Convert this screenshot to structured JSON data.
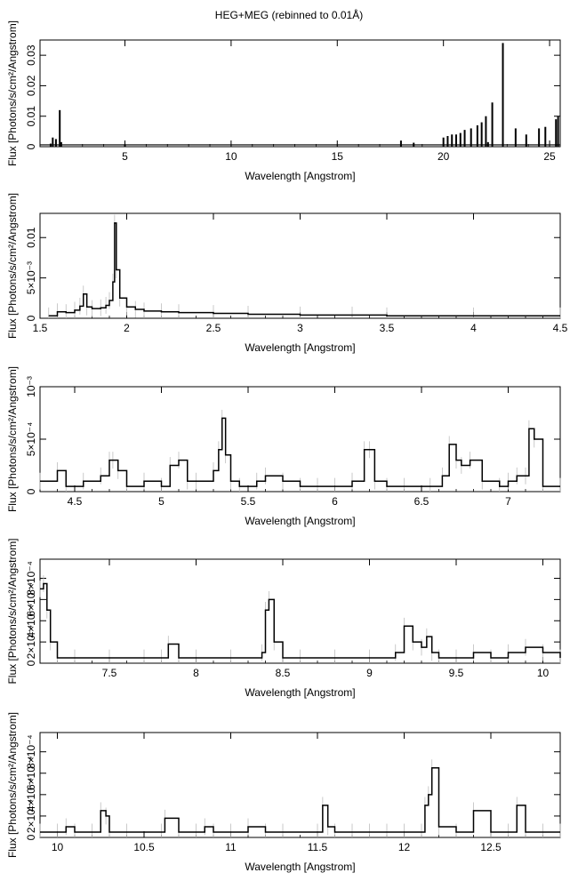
{
  "figure": {
    "title": "HEG+MEG (rebinned to 0.01Å)"
  },
  "chart_data": [
    {
      "type": "line",
      "style": "step-histogram",
      "xlabel": "Wavelength [Angstrom]",
      "ylabel": "Flux [Photons/s/cm²/Angstrom]",
      "xlim": [
        1.0,
        25.5
      ],
      "ylim": [
        0,
        0.035
      ],
      "xticks": [
        5,
        10,
        15,
        20,
        25
      ],
      "xtick_labels": [
        "5",
        "10",
        "15",
        "20",
        "25"
      ],
      "yticks": [
        0,
        0.01,
        0.02,
        0.03
      ],
      "ytick_labels": [
        "0",
        "0.01",
        "0.02",
        "0.03"
      ],
      "baseline": 0.0006,
      "lines": [
        {
          "x": 1.5,
          "y": 0.001
        },
        {
          "x": 1.6,
          "y": 0.003
        },
        {
          "x": 1.75,
          "y": 0.0025
        },
        {
          "x": 1.93,
          "y": 0.012
        },
        {
          "x": 2.0,
          "y": 0.0015
        },
        {
          "x": 5.0,
          "y": 0.0008
        },
        {
          "x": 18.0,
          "y": 0.002
        },
        {
          "x": 18.6,
          "y": 0.0013
        },
        {
          "x": 20.0,
          "y": 0.003
        },
        {
          "x": 20.2,
          "y": 0.0035
        },
        {
          "x": 20.4,
          "y": 0.004
        },
        {
          "x": 20.6,
          "y": 0.004
        },
        {
          "x": 20.8,
          "y": 0.0045
        },
        {
          "x": 21.0,
          "y": 0.0055
        },
        {
          "x": 21.3,
          "y": 0.006
        },
        {
          "x": 21.6,
          "y": 0.007
        },
        {
          "x": 21.8,
          "y": 0.008
        },
        {
          "x": 22.0,
          "y": 0.01
        },
        {
          "x": 22.1,
          "y": 0.0015
        },
        {
          "x": 22.3,
          "y": 0.0145
        },
        {
          "x": 22.8,
          "y": 0.034
        },
        {
          "x": 23.4,
          "y": 0.006
        },
        {
          "x": 23.9,
          "y": 0.004
        },
        {
          "x": 24.5,
          "y": 0.006
        },
        {
          "x": 24.8,
          "y": 0.0065
        },
        {
          "x": 25.3,
          "y": 0.009
        },
        {
          "x": 25.4,
          "y": 0.01
        }
      ]
    },
    {
      "type": "line",
      "style": "step-histogram",
      "xlabel": "Wavelength [Angstrom]",
      "ylabel": "Flux [Photons/s/cm²/Angstrom]",
      "xlim": [
        1.5,
        4.5
      ],
      "ylim": [
        0,
        0.013
      ],
      "xticks": [
        1.5,
        2,
        2.5,
        3,
        3.5,
        4,
        4.5
      ],
      "xtick_labels": [
        "1.5",
        "2",
        "2.5",
        "3",
        "3.5",
        "4",
        "4.5"
      ],
      "yticks": [
        0,
        0.005,
        0.01
      ],
      "ytick_labels": [
        "0",
        "5×10⁻³",
        "0.01"
      ],
      "x": [
        1.55,
        1.6,
        1.65,
        1.7,
        1.73,
        1.75,
        1.77,
        1.8,
        1.85,
        1.88,
        1.9,
        1.92,
        1.93,
        1.94,
        1.96,
        2.0,
        2.05,
        2.1,
        2.2,
        2.3,
        2.5,
        2.7,
        3.0,
        3.3,
        3.5,
        4.0,
        4.5
      ],
      "y": [
        0.0003,
        0.0008,
        0.0007,
        0.001,
        0.0015,
        0.003,
        0.0014,
        0.0012,
        0.0013,
        0.0016,
        0.0022,
        0.0045,
        0.0118,
        0.006,
        0.0025,
        0.0014,
        0.0011,
        0.0009,
        0.0008,
        0.0007,
        0.0006,
        0.0005,
        0.0004,
        0.0004,
        0.0003,
        0.0003,
        0.0003
      ]
    },
    {
      "type": "line",
      "style": "step-histogram",
      "xlabel": "Wavelength [Angstrom]",
      "ylabel": "Flux [Photons/s/cm²/Angstrom]",
      "xlim": [
        4.3,
        7.3
      ],
      "ylim": [
        0,
        0.001
      ],
      "xticks": [
        4.5,
        5,
        5.5,
        6,
        6.5,
        7
      ],
      "xtick_labels": [
        "4.5",
        "5",
        "5.5",
        "6",
        "6.5",
        "7"
      ],
      "yticks": [
        0,
        0.0005,
        0.001
      ],
      "ytick_labels": [
        "0",
        "5×10⁻⁴",
        "10⁻³"
      ],
      "x": [
        4.3,
        4.4,
        4.45,
        4.55,
        4.65,
        4.7,
        4.72,
        4.75,
        4.8,
        4.9,
        5.0,
        5.05,
        5.1,
        5.15,
        5.2,
        5.3,
        5.33,
        5.35,
        5.37,
        5.4,
        5.45,
        5.55,
        5.6,
        5.7,
        5.8,
        5.9,
        6.0,
        6.1,
        6.17,
        6.2,
        6.23,
        6.3,
        6.4,
        6.55,
        6.62,
        6.66,
        6.7,
        6.73,
        6.78,
        6.85,
        6.95,
        7.0,
        7.05,
        7.1,
        7.12,
        7.15,
        7.2,
        7.3
      ],
      "y": [
        0.0001,
        0.0002,
        5e-05,
        0.0001,
        0.00015,
        0.0003,
        0.0003,
        0.0002,
        5e-05,
        0.0001,
        5e-05,
        0.00025,
        0.0003,
        0.0001,
        0.0001,
        0.0002,
        0.0004,
        0.0007,
        0.00035,
        0.0001,
        5e-05,
        0.0001,
        0.00015,
        0.0001,
        5e-05,
        5e-05,
        5e-05,
        0.0001,
        0.0004,
        0.0004,
        0.0001,
        5e-05,
        5e-05,
        5e-05,
        0.00015,
        0.00045,
        0.0003,
        0.00025,
        0.0003,
        0.0001,
        5e-05,
        0.0001,
        0.00015,
        0.00015,
        0.0006,
        0.0005,
        5e-05,
        5e-05
      ]
    },
    {
      "type": "line",
      "style": "step-histogram",
      "xlabel": "Wavelength [Angstrom]",
      "ylabel": "Flux [Photons/s/cm²/Angstrom]",
      "xlim": [
        7.1,
        10.1
      ],
      "ylim": [
        0,
        0.00098
      ],
      "xticks": [
        7.5,
        8,
        8.5,
        9,
        9.5,
        10
      ],
      "xtick_labels": [
        "7.5",
        "8",
        "8.5",
        "9",
        "9.5",
        "10"
      ],
      "yticks": [
        0,
        0.0002,
        0.0004,
        0.0006,
        0.0008
      ],
      "ytick_labels": [
        "0",
        "2×10⁻⁴",
        "4×10⁻⁴",
        "6×10⁻⁴",
        "8×10⁻⁴"
      ],
      "x": [
        7.1,
        7.12,
        7.14,
        7.16,
        7.2,
        7.3,
        7.5,
        7.7,
        7.8,
        7.84,
        7.9,
        8.0,
        8.2,
        8.38,
        8.4,
        8.42,
        8.45,
        8.5,
        8.6,
        8.8,
        9.0,
        9.15,
        9.2,
        9.25,
        9.3,
        9.33,
        9.36,
        9.4,
        9.5,
        9.6,
        9.7,
        9.8,
        9.9,
        10.0,
        10.1
      ],
      "y": [
        0.0007,
        0.00075,
        0.0005,
        0.0002,
        5e-05,
        5e-05,
        5e-05,
        5e-05,
        5e-05,
        0.00018,
        5e-05,
        5e-05,
        5e-05,
        0.0001,
        0.0005,
        0.0006,
        0.0002,
        5e-05,
        5e-05,
        5e-05,
        5e-05,
        0.0001,
        0.00035,
        0.0002,
        0.00015,
        0.00025,
        0.0001,
        5e-05,
        5e-05,
        0.0001,
        5e-05,
        0.0001,
        0.00015,
        0.0001,
        5e-05
      ]
    },
    {
      "type": "line",
      "style": "step-histogram",
      "xlabel": "Wavelength [Angstrom]",
      "ylabel": "Flux [Photons/s/cm²/Angstrom]",
      "xlim": [
        9.9,
        12.9
      ],
      "ylim": [
        0,
        0.00098
      ],
      "xticks": [
        10,
        10.5,
        11,
        11.5,
        12,
        12.5
      ],
      "xtick_labels": [
        "10",
        "10.5",
        "11",
        "11.5",
        "12",
        "12.5"
      ],
      "yticks": [
        0,
        0.0002,
        0.0004,
        0.0006,
        0.0008
      ],
      "ytick_labels": [
        "0",
        "2×10⁻⁴",
        "4×10⁻⁴",
        "6×10⁻⁴",
        "8×10⁻⁴"
      ],
      "x": [
        9.9,
        10.0,
        10.05,
        10.1,
        10.2,
        10.25,
        10.28,
        10.3,
        10.4,
        10.6,
        10.62,
        10.7,
        10.8,
        10.85,
        10.9,
        11.0,
        11.1,
        11.2,
        11.3,
        11.5,
        11.53,
        11.56,
        11.6,
        11.7,
        11.8,
        11.9,
        12.0,
        12.1,
        12.12,
        12.14,
        12.16,
        12.2,
        12.3,
        12.4,
        12.5,
        12.6,
        12.65,
        12.7,
        12.8,
        12.9
      ],
      "y": [
        5e-05,
        5e-05,
        0.0001,
        5e-05,
        5e-05,
        0.00025,
        0.0002,
        5e-05,
        5e-05,
        5e-05,
        0.00018,
        5e-05,
        5e-05,
        0.0001,
        5e-05,
        5e-05,
        0.0001,
        5e-05,
        5e-05,
        5e-05,
        0.0003,
        0.0001,
        5e-05,
        5e-05,
        5e-05,
        5e-05,
        5e-05,
        5e-05,
        0.0003,
        0.0004,
        0.00065,
        0.0001,
        5e-05,
        0.00025,
        5e-05,
        5e-05,
        0.0003,
        5e-05,
        5e-05,
        5e-05
      ]
    }
  ]
}
